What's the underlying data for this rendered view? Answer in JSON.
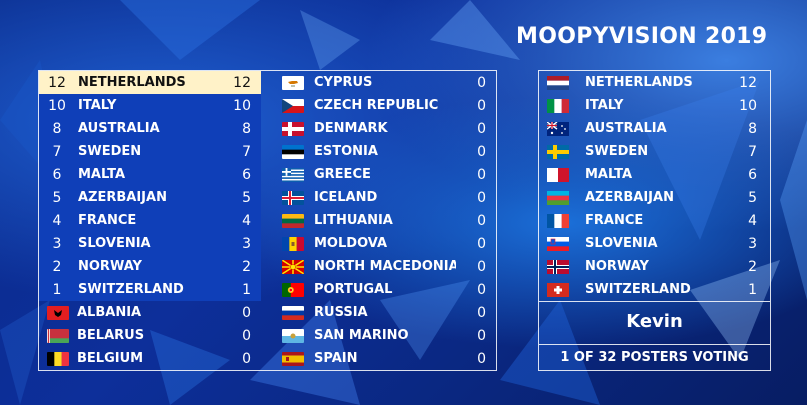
{
  "title": "MOOPYVISION 2019",
  "scoreboard": {
    "left": [
      {
        "rank": "12",
        "name": "NETHERLANDS",
        "score": "12",
        "flag": "netherlands-flag-icon",
        "style": "top"
      },
      {
        "rank": "10",
        "name": "ITALY",
        "score": "10",
        "flag": "italy-flag-icon",
        "style": "pts"
      },
      {
        "rank": "8",
        "name": "AUSTRALIA",
        "score": "8",
        "flag": "australia-flag-icon",
        "style": "pts"
      },
      {
        "rank": "7",
        "name": "SWEDEN",
        "score": "7",
        "flag": "sweden-flag-icon",
        "style": "pts"
      },
      {
        "rank": "6",
        "name": "MALTA",
        "score": "6",
        "flag": "malta-flag-icon",
        "style": "pts"
      },
      {
        "rank": "5",
        "name": "AZERBAIJAN",
        "score": "5",
        "flag": "azerbaijan-flag-icon",
        "style": "pts"
      },
      {
        "rank": "4",
        "name": "FRANCE",
        "score": "4",
        "flag": "france-flag-icon",
        "style": "pts"
      },
      {
        "rank": "3",
        "name": "SLOVENIA",
        "score": "3",
        "flag": "slovenia-flag-icon",
        "style": "pts"
      },
      {
        "rank": "2",
        "name": "NORWAY",
        "score": "2",
        "flag": "norway-flag-icon",
        "style": "pts"
      },
      {
        "rank": "1",
        "name": "SWITZERLAND",
        "score": "1",
        "flag": "switzerland-flag-icon",
        "style": "pts"
      },
      {
        "rank": "",
        "name": "ALBANIA",
        "score": "0",
        "flag": "albania-flag-icon",
        "style": "plain"
      },
      {
        "rank": "",
        "name": "BELARUS",
        "score": "0",
        "flag": "belarus-flag-icon",
        "style": "plain"
      },
      {
        "rank": "",
        "name": "BELGIUM",
        "score": "0",
        "flag": "belgium-flag-icon",
        "style": "plain"
      }
    ],
    "right": [
      {
        "name": "CYPRUS",
        "score": "0",
        "flag": "cyprus-flag-icon"
      },
      {
        "name": "CZECH REPUBLIC",
        "score": "0",
        "flag": "czech-republic-flag-icon"
      },
      {
        "name": "DENMARK",
        "score": "0",
        "flag": "denmark-flag-icon"
      },
      {
        "name": "ESTONIA",
        "score": "0",
        "flag": "estonia-flag-icon"
      },
      {
        "name": "GREECE",
        "score": "0",
        "flag": "greece-flag-icon"
      },
      {
        "name": "ICELAND",
        "score": "0",
        "flag": "iceland-flag-icon"
      },
      {
        "name": "LITHUANIA",
        "score": "0",
        "flag": "lithuania-flag-icon"
      },
      {
        "name": "MOLDOVA",
        "score": "0",
        "flag": "moldova-flag-icon"
      },
      {
        "name": "NORTH MACEDONIA",
        "score": "0",
        "flag": "north-macedonia-flag-icon"
      },
      {
        "name": "PORTUGAL",
        "score": "0",
        "flag": "portugal-flag-icon"
      },
      {
        "name": "RUSSIA",
        "score": "0",
        "flag": "russia-flag-icon"
      },
      {
        "name": "SAN MARINO",
        "score": "0",
        "flag": "san-marino-flag-icon"
      },
      {
        "name": "SPAIN",
        "score": "0",
        "flag": "spain-flag-icon"
      }
    ]
  },
  "voter": {
    "votes": [
      {
        "name": "NETHERLANDS",
        "score": "12",
        "flag": "netherlands-flag-icon"
      },
      {
        "name": "ITALY",
        "score": "10",
        "flag": "italy-flag-icon"
      },
      {
        "name": "AUSTRALIA",
        "score": "8",
        "flag": "australia-flag-icon"
      },
      {
        "name": "SWEDEN",
        "score": "7",
        "flag": "sweden-flag-icon"
      },
      {
        "name": "MALTA",
        "score": "6",
        "flag": "malta-flag-icon"
      },
      {
        "name": "AZERBAIJAN",
        "score": "5",
        "flag": "azerbaijan-flag-icon"
      },
      {
        "name": "FRANCE",
        "score": "4",
        "flag": "france-flag-icon"
      },
      {
        "name": "SLOVENIA",
        "score": "3",
        "flag": "slovenia-flag-icon"
      },
      {
        "name": "NORWAY",
        "score": "2",
        "flag": "norway-flag-icon"
      },
      {
        "name": "SWITZERLAND",
        "score": "1",
        "flag": "switzerland-flag-icon"
      }
    ],
    "name": "Kevin",
    "status": "1 OF 32 POSTERS VOTING"
  },
  "colors": {
    "background": "#0d2f9a",
    "points_row": "#0f3fb8",
    "top_row": "#fff2c8",
    "text": "#ffffff"
  }
}
